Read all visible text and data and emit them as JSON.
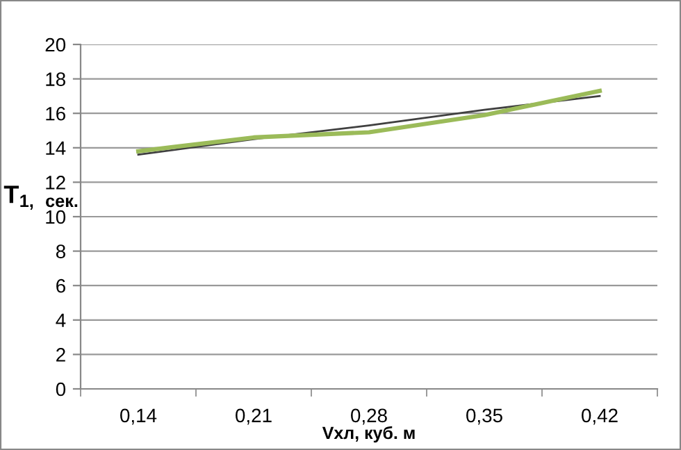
{
  "chart_data": {
    "type": "line",
    "xlabel": "Vхл, куб. м",
    "ylabel": "T$_{1,}$ $_{сек.}$",
    "categories": [
      "0,14",
      "0,21",
      "0,28",
      "0,35",
      "0,42"
    ],
    "series": [
      {
        "color": "#9bbb59",
        "values": [
          13.8,
          14.6,
          14.9,
          15.9,
          17.3
        ]
      },
      {
        "color": "#404040",
        "values": [
          13.6,
          14.5,
          15.3,
          16.2,
          17.0
        ]
      }
    ],
    "ylim": [
      0,
      20
    ],
    "yticks": [
      0,
      2,
      4,
      6,
      8,
      10,
      12,
      14,
      16,
      18,
      20
    ],
    "grid": "y",
    "legend": false,
    "marker": "none",
    "line_style": "solid"
  }
}
